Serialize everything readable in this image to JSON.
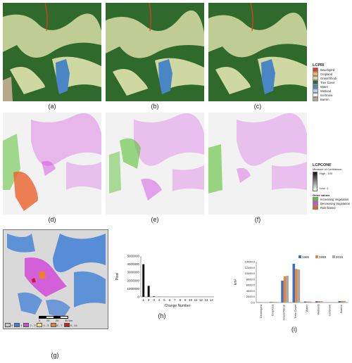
{
  "panels": {
    "a": {
      "caption": "(a)"
    },
    "b": {
      "caption": "(b)"
    },
    "c": {
      "caption": "(c)"
    },
    "d": {
      "caption": "(d)"
    },
    "e": {
      "caption": "(e)"
    },
    "f": {
      "caption": "(f)"
    },
    "g": {
      "caption": "(g)"
    },
    "h": {
      "caption": "(h)"
    },
    "i": {
      "caption": "(i)"
    }
  },
  "lcpri_legend": {
    "title": "LCPRI",
    "items": [
      {
        "label": "Developed",
        "color": "#e8372c"
      },
      {
        "label": "Cropland",
        "color": "#f5b44a"
      },
      {
        "label": "Grass/Shrub",
        "color": "#cfd8a0"
      },
      {
        "label": "Tree Cover",
        "color": "#2f6a2c"
      },
      {
        "label": "Water",
        "color": "#4a86c6"
      },
      {
        "label": "Wetland",
        "color": "#a7d2e8"
      },
      {
        "label": "Ice/Snow",
        "color": "#f3f3f3"
      },
      {
        "label": "Barren",
        "color": "#b8a88a"
      }
    ]
  },
  "lcpconf_legend": {
    "title": "LCPCONF",
    "subtitle": "Measure of Confidence",
    "high": "High : 100",
    "low": "Low : 1",
    "other_title": "Other values",
    "items": [
      {
        "label": "Increasing Vegetation",
        "color": "#5bc236"
      },
      {
        "label": "Decreasing Vegetation",
        "color": "#d44be0"
      },
      {
        "label": "Rule-based",
        "color": "#e8622a"
      }
    ]
  },
  "g_legend": {
    "items": [
      {
        "label": "0",
        "color": "#c9c9c9"
      },
      {
        "label": "1",
        "color": "#3f7fd6"
      },
      {
        "label": "2 - 3",
        "color": "#d14ad8"
      },
      {
        "label": "4 - 5",
        "color": "#f0e08a"
      },
      {
        "label": "6 - 7",
        "color": "#e8832c"
      },
      {
        "label": "8 - 14",
        "color": "#c81e1e"
      }
    ],
    "scale_labels": [
      "0",
      "10",
      "20",
      "30 km"
    ]
  },
  "chart_data": [
    {
      "type": "bar",
      "panel": "h",
      "categories": [
        "1",
        "2",
        "3",
        "4",
        "5",
        "6",
        "7",
        "8",
        "9",
        "10",
        "11",
        "12",
        "13",
        "14"
      ],
      "values": [
        4000000,
        1350000,
        60000,
        15000,
        5000,
        2000,
        1000,
        500,
        200,
        100,
        50,
        20,
        10,
        5
      ],
      "xlabel": "Change Number",
      "ylabel": "Pixel",
      "ylim": [
        0,
        5000000
      ],
      "yticks": [
        "0",
        "1000000",
        "2000000",
        "3000000",
        "4000000",
        "5000000"
      ]
    },
    {
      "type": "bar",
      "panel": "i",
      "categories": [
        "Developed",
        "Cropland",
        "Grass/Shrub",
        "Tree Cover",
        "Water",
        "Wetland",
        "Ice/Snow",
        "Barren"
      ],
      "series": [
        {
          "name": "1985",
          "color": "#3d6fc4",
          "values": [
            100,
            200,
            7500,
            13300,
            350,
            450,
            50,
            500
          ]
        },
        {
          "name": "1990",
          "color": "#e2863a",
          "values": [
            100,
            200,
            9000,
            11500,
            350,
            450,
            50,
            550
          ]
        },
        {
          "name": "2016",
          "color": "#a8a8a8",
          "values": [
            120,
            220,
            9200,
            11300,
            350,
            450,
            50,
            500
          ]
        }
      ],
      "ylabel": "km²",
      "ylim": [
        0,
        14000
      ],
      "yticks": [
        "0.0",
        "2000.0",
        "4000.0",
        "6000.0",
        "8000.0",
        "10000.0",
        "12000.0",
        "14000.0"
      ]
    }
  ]
}
